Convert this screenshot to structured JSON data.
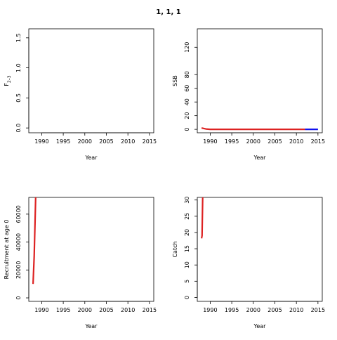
{
  "page_title": "1, 1, 1",
  "chart_data": [
    {
      "type": "line",
      "ylabel": "F2–3",
      "ylabel_main": "F",
      "ylabel_sub": "2–3",
      "xlabel": "Year",
      "xlim": [
        1987.0,
        2016.0
      ],
      "ylim": [
        -0.08,
        1.65
      ],
      "xticks": [
        1990,
        1995,
        2000,
        2005,
        2010,
        2015
      ],
      "yticks": [
        0.0,
        0.5,
        1.0,
        1.5
      ],
      "ytick_labels": [
        "0.0",
        "0.5",
        "1.0",
        "1.5"
      ],
      "series": []
    },
    {
      "type": "line",
      "ylabel": "SSB",
      "xlabel": "Year",
      "xlim": [
        1987.0,
        2016.0
      ],
      "ylim": [
        -5,
        147
      ],
      "xticks": [
        1990,
        1995,
        2000,
        2005,
        2010,
        2015
      ],
      "yticks": [
        0,
        20,
        40,
        60,
        80,
        120
      ],
      "ytick_labels": [
        "0",
        "20",
        "40",
        "60",
        "80",
        "120"
      ],
      "series": [
        {
          "color": "#dd2222",
          "x": [
            1988,
            1989,
            1990,
            1995,
            2000,
            2005,
            2012
          ],
          "values": [
            2,
            0.5,
            0,
            0,
            0,
            0,
            0
          ]
        },
        {
          "color": "#1111ee",
          "x": [
            2012,
            2015
          ],
          "values": [
            0,
            0
          ]
        }
      ]
    },
    {
      "type": "line",
      "ylabel": "Recruitment at age 0",
      "xlabel": "Year",
      "xlim": [
        1987.0,
        2016.0
      ],
      "ylim": [
        -2500,
        72000
      ],
      "xticks": [
        1990,
        1995,
        2000,
        2005,
        2010,
        2015
      ],
      "yticks": [
        0,
        20000,
        40000,
        60000
      ],
      "ytick_labels": [
        "0",
        "20000",
        "40000",
        "60000"
      ],
      "series": [
        {
          "color": "#dd2222",
          "x": [
            1988.0,
            1988.25,
            1988.6
          ],
          "values": [
            10000,
            30000,
            72000
          ]
        }
      ]
    },
    {
      "type": "line",
      "ylabel": "Catch",
      "xlabel": "Year",
      "xlim": [
        1987.0,
        2016.0
      ],
      "ylim": [
        -1.2,
        30.8
      ],
      "xticks": [
        1990,
        1995,
        2000,
        2005,
        2010,
        2015
      ],
      "yticks": [
        0,
        5,
        10,
        15,
        20,
        25,
        30
      ],
      "ytick_labels": [
        "0",
        "5",
        "10",
        "15",
        "20",
        "25",
        "30"
      ],
      "series": [
        {
          "color": "#dd2222",
          "x": [
            1988.0,
            1988.1,
            1988.25
          ],
          "values": [
            18.2,
            19,
            30.8
          ]
        }
      ]
    }
  ]
}
